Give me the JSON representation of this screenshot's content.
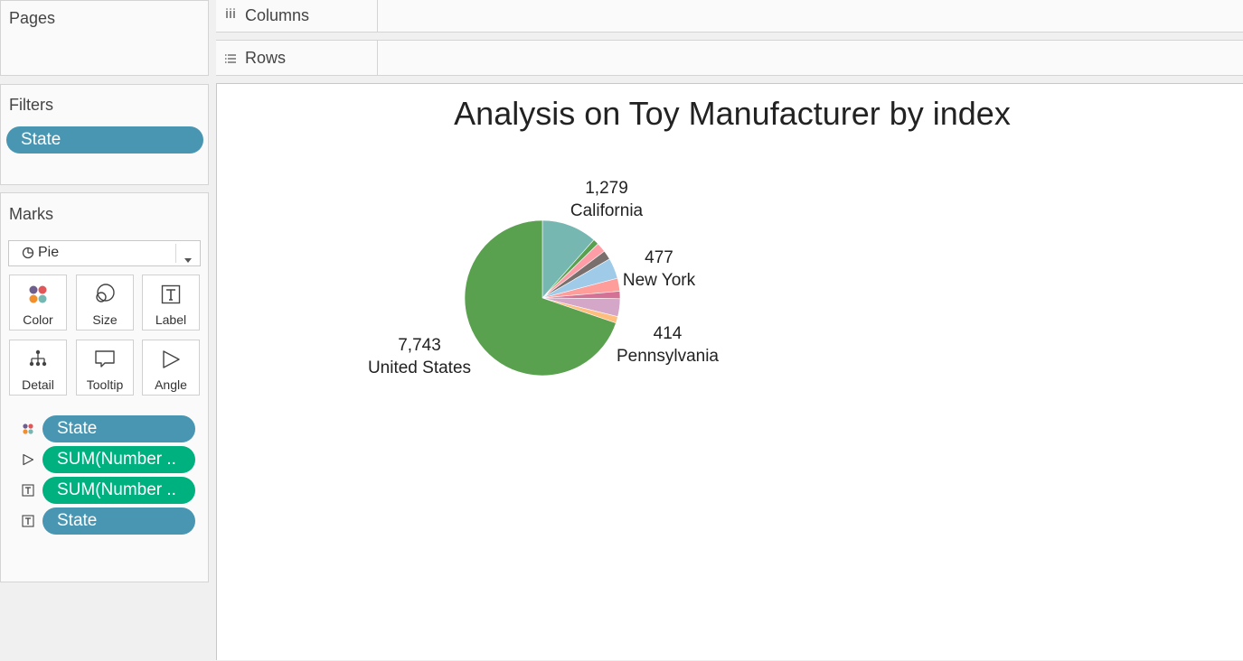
{
  "sidebar": {
    "pages": {
      "title": "Pages"
    },
    "filters": {
      "title": "Filters",
      "pills": [
        {
          "label": "State"
        }
      ]
    },
    "marks": {
      "title": "Marks",
      "mark_type": "Pie",
      "cards": [
        {
          "label": "Color",
          "icon": "color-icon"
        },
        {
          "label": "Size",
          "icon": "size-icon"
        },
        {
          "label": "Label",
          "icon": "label-icon"
        },
        {
          "label": "Detail",
          "icon": "detail-icon"
        },
        {
          "label": "Tooltip",
          "icon": "tooltip-icon"
        },
        {
          "label": "Angle",
          "icon": "angle-icon"
        }
      ],
      "fields": [
        {
          "icon": "color-icon",
          "label": "State",
          "kind": "dimension"
        },
        {
          "icon": "angle-icon",
          "label": "SUM(Number ..",
          "kind": "measure"
        },
        {
          "icon": "label-icon",
          "label": "SUM(Number ..",
          "kind": "measure"
        },
        {
          "icon": "label-icon",
          "label": "State",
          "kind": "dimension"
        }
      ]
    }
  },
  "shelves": {
    "columns": {
      "label": "Columns",
      "icon": "columns-icon"
    },
    "rows": {
      "label": "Rows",
      "icon": "rows-icon"
    }
  },
  "colors": {
    "dimension_pill": "#4996b2",
    "measure_pill": "#00b180"
  },
  "chart_data": {
    "type": "pie",
    "title": "Analysis on Toy Manufacturer by index",
    "slices": [
      {
        "label": "California",
        "value": 1279,
        "value_label": "1,279",
        "color": "#76b7b2",
        "labeled": true
      },
      {
        "label": "",
        "value": 131,
        "color": "#59a14f",
        "labeled": false
      },
      {
        "label": "",
        "value": 221,
        "color": "#ff9da7",
        "labeled": false
      },
      {
        "label": "",
        "value": 212,
        "color": "#79706e",
        "labeled": false
      },
      {
        "label": "New York",
        "value": 477,
        "value_label": "477",
        "color": "#a0cbe8",
        "labeled": true
      },
      {
        "label": "",
        "value": 300,
        "color": "#ff9d9a",
        "labeled": false
      },
      {
        "label": "",
        "value": 170,
        "color": "#d37295",
        "labeled": false
      },
      {
        "label": "Pennsylvania",
        "value": 414,
        "value_label": "414",
        "color": "#d4a6c8",
        "labeled": true
      },
      {
        "label": "",
        "value": 150,
        "color": "#ffbe7d",
        "labeled": false
      },
      {
        "label": "United States",
        "value": 7743,
        "value_label": "7,743",
        "color": "#59a14f",
        "labeled": true
      }
    ]
  }
}
